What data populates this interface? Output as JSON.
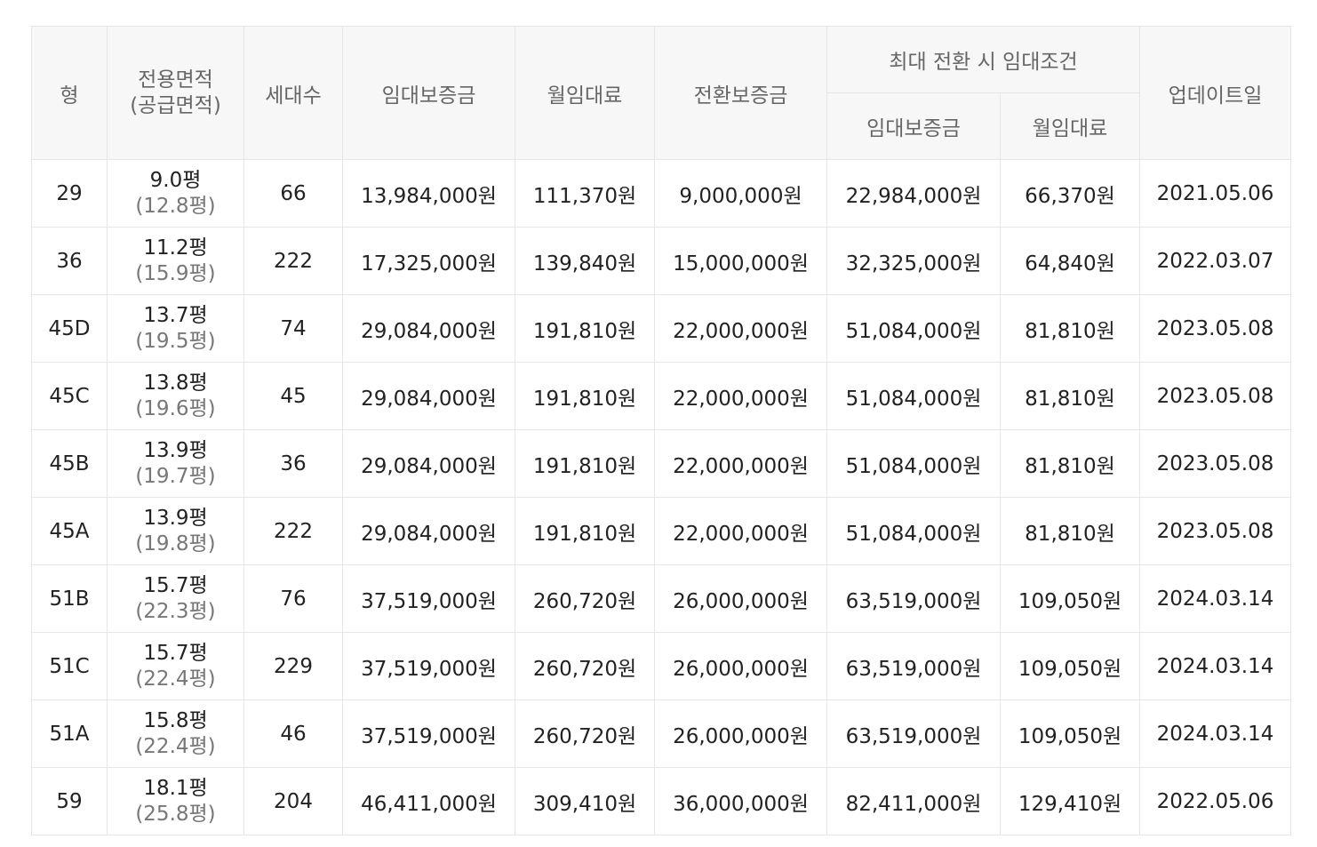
{
  "table": {
    "headers": {
      "type": "형",
      "area_line1": "전용면적",
      "area_line2": "(공급면적)",
      "households": "세대수",
      "deposit": "임대보증금",
      "monthly_rent": "월임대료",
      "conversion_deposit": "전환보증금",
      "max_conversion_group": "최대 전환 시 임대조건",
      "max_deposit": "임대보증금",
      "max_monthly_rent": "월임대료",
      "updated": "업데이트일"
    },
    "rows": [
      {
        "type": "29",
        "area": "9.0평",
        "supply": "(12.8평)",
        "households": "66",
        "deposit": "13,984,000원",
        "rent": "111,370원",
        "conv": "9,000,000원",
        "max_deposit": "22,984,000원",
        "max_rent": "66,370원",
        "updated": "2021.05.06"
      },
      {
        "type": "36",
        "area": "11.2평",
        "supply": "(15.9평)",
        "households": "222",
        "deposit": "17,325,000원",
        "rent": "139,840원",
        "conv": "15,000,000원",
        "max_deposit": "32,325,000원",
        "max_rent": "64,840원",
        "updated": "2022.03.07"
      },
      {
        "type": "45D",
        "area": "13.7평",
        "supply": "(19.5평)",
        "households": "74",
        "deposit": "29,084,000원",
        "rent": "191,810원",
        "conv": "22,000,000원",
        "max_deposit": "51,084,000원",
        "max_rent": "81,810원",
        "updated": "2023.05.08"
      },
      {
        "type": "45C",
        "area": "13.8평",
        "supply": "(19.6평)",
        "households": "45",
        "deposit": "29,084,000원",
        "rent": "191,810원",
        "conv": "22,000,000원",
        "max_deposit": "51,084,000원",
        "max_rent": "81,810원",
        "updated": "2023.05.08"
      },
      {
        "type": "45B",
        "area": "13.9평",
        "supply": "(19.7평)",
        "households": "36",
        "deposit": "29,084,000원",
        "rent": "191,810원",
        "conv": "22,000,000원",
        "max_deposit": "51,084,000원",
        "max_rent": "81,810원",
        "updated": "2023.05.08"
      },
      {
        "type": "45A",
        "area": "13.9평",
        "supply": "(19.8평)",
        "households": "222",
        "deposit": "29,084,000원",
        "rent": "191,810원",
        "conv": "22,000,000원",
        "max_deposit": "51,084,000원",
        "max_rent": "81,810원",
        "updated": "2023.05.08"
      },
      {
        "type": "51B",
        "area": "15.7평",
        "supply": "(22.3평)",
        "households": "76",
        "deposit": "37,519,000원",
        "rent": "260,720원",
        "conv": "26,000,000원",
        "max_deposit": "63,519,000원",
        "max_rent": "109,050원",
        "updated": "2024.03.14"
      },
      {
        "type": "51C",
        "area": "15.7평",
        "supply": "(22.4평)",
        "households": "229",
        "deposit": "37,519,000원",
        "rent": "260,720원",
        "conv": "26,000,000원",
        "max_deposit": "63,519,000원",
        "max_rent": "109,050원",
        "updated": "2024.03.14"
      },
      {
        "type": "51A",
        "area": "15.8평",
        "supply": "(22.4평)",
        "households": "46",
        "deposit": "37,519,000원",
        "rent": "260,720원",
        "conv": "26,000,000원",
        "max_deposit": "63,519,000원",
        "max_rent": "109,050원",
        "updated": "2024.03.14"
      },
      {
        "type": "59",
        "area": "18.1평",
        "supply": "(25.8평)",
        "households": "204",
        "deposit": "46,411,000원",
        "rent": "309,410원",
        "conv": "36,000,000원",
        "max_deposit": "82,411,000원",
        "max_rent": "129,410원",
        "updated": "2022.05.06"
      }
    ]
  }
}
